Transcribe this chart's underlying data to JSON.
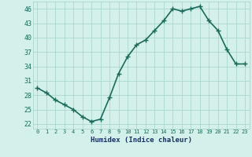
{
  "x": [
    0,
    1,
    2,
    3,
    4,
    5,
    6,
    7,
    8,
    9,
    10,
    11,
    12,
    13,
    14,
    15,
    16,
    17,
    18,
    19,
    20,
    21,
    22,
    23
  ],
  "y": [
    29.5,
    28.5,
    27.0,
    26.0,
    25.0,
    23.5,
    22.5,
    23.0,
    27.5,
    32.5,
    36.0,
    38.5,
    39.5,
    41.5,
    43.5,
    46.0,
    45.5,
    46.0,
    46.5,
    43.5,
    41.5,
    37.5,
    34.5,
    34.5
  ],
  "xlabel": "Humidex (Indice chaleur)",
  "xlim": [
    -0.5,
    23.5
  ],
  "ylim": [
    21,
    47.5
  ],
  "yticks": [
    22,
    25,
    28,
    31,
    34,
    37,
    40,
    43,
    46
  ],
  "xticks": [
    0,
    1,
    2,
    3,
    4,
    5,
    6,
    7,
    8,
    9,
    10,
    11,
    12,
    13,
    14,
    15,
    16,
    17,
    18,
    19,
    20,
    21,
    22,
    23
  ],
  "line_color": "#1a6b5a",
  "marker": "+",
  "bg_color": "#d4f0eb",
  "grid_color": "#aad6ce",
  "tick_label_color": "#1a6b5a",
  "xlabel_color": "#1a3060",
  "linewidth": 1.2,
  "markersize": 4,
  "markeredgewidth": 1.0
}
